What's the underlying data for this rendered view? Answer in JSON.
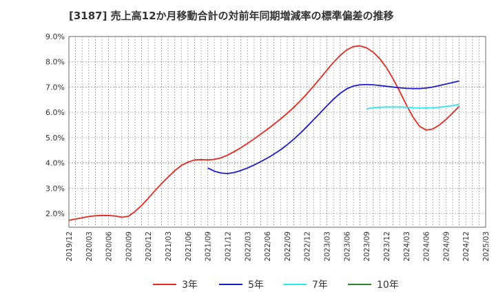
{
  "chart_data": {
    "type": "line",
    "title": "[3187]  売上高12か月移動合計の対前年同期増減率の標準偏差の推移",
    "xlabel": "",
    "ylabel": "",
    "ylim": [
      1.5,
      9.0
    ],
    "yticks": [
      "2.0%",
      "3.0%",
      "4.0%",
      "5.0%",
      "6.0%",
      "7.0%",
      "8.0%",
      "9.0%"
    ],
    "ytick_values": [
      2.0,
      3.0,
      4.0,
      5.0,
      6.0,
      7.0,
      8.0,
      9.0
    ],
    "x_start": "2019/12",
    "x_end": "2025/03",
    "xticks": [
      "2019/12",
      "2020/03",
      "2020/06",
      "2020/09",
      "2020/12",
      "2021/03",
      "2021/06",
      "2021/09",
      "2021/12",
      "2022/03",
      "2022/06",
      "2022/09",
      "2022/12",
      "2023/03",
      "2023/06",
      "2023/09",
      "2023/12",
      "2024/03",
      "2024/06",
      "2024/09",
      "2024/12",
      "2025/03"
    ],
    "grid": true,
    "legend_position": "bottom",
    "series": [
      {
        "name": "3年",
        "color": "#e8281e",
        "points": [
          [
            "2019/12",
            1.73
          ],
          [
            "2020/01",
            1.78
          ],
          [
            "2020/02",
            1.83
          ],
          [
            "2020/03",
            1.88
          ],
          [
            "2020/04",
            1.91
          ],
          [
            "2020/05",
            1.92
          ],
          [
            "2020/06",
            1.92
          ],
          [
            "2020/07",
            1.9
          ],
          [
            "2020/08",
            1.85
          ],
          [
            "2020/09",
            1.89
          ],
          [
            "2020/10",
            2.08
          ],
          [
            "2020/11",
            2.32
          ],
          [
            "2020/12",
            2.6
          ],
          [
            "2020/12",
            2.6
          ],
          [
            "2021/01",
            2.9
          ],
          [
            "2021/02",
            3.18
          ],
          [
            "2021/03",
            3.44
          ],
          [
            "2021/04",
            3.69
          ],
          [
            "2021/05",
            3.9
          ],
          [
            "2021/06",
            4.03
          ],
          [
            "2021/07",
            4.12
          ],
          [
            "2021/08",
            4.13
          ],
          [
            "2021/09",
            4.12
          ],
          [
            "2021/10",
            4.14
          ],
          [
            "2021/11",
            4.2
          ],
          [
            "2021/12",
            4.31
          ],
          [
            "2022/01",
            4.45
          ],
          [
            "2022/02",
            4.6
          ],
          [
            "2022/03",
            4.77
          ],
          [
            "2022/04",
            4.95
          ],
          [
            "2022/05",
            5.14
          ],
          [
            "2022/06",
            5.33
          ],
          [
            "2022/07",
            5.53
          ],
          [
            "2022/08",
            5.74
          ],
          [
            "2022/09",
            5.96
          ],
          [
            "2022/10",
            6.2
          ],
          [
            "2022/11",
            6.46
          ],
          [
            "2022/12",
            6.74
          ],
          [
            "2023/01",
            7.04
          ],
          [
            "2023/02",
            7.35
          ],
          [
            "2023/03",
            7.67
          ],
          [
            "2023/04",
            7.98
          ],
          [
            "2023/05",
            8.25
          ],
          [
            "2023/06",
            8.47
          ],
          [
            "2023/07",
            8.6
          ],
          [
            "2023/08",
            8.63
          ],
          [
            "2023/09",
            8.55
          ],
          [
            "2023/10",
            8.38
          ],
          [
            "2023/11",
            8.12
          ],
          [
            "2023/12",
            7.77
          ],
          [
            "2024/01",
            7.33
          ],
          [
            "2024/02",
            6.83
          ],
          [
            "2024/03",
            6.3
          ],
          [
            "2024/04",
            5.82
          ],
          [
            "2024/05",
            5.45
          ],
          [
            "2024/06",
            5.3
          ],
          [
            "2024/07",
            5.34
          ],
          [
            "2024/08",
            5.5
          ],
          [
            "2024/09",
            5.72
          ],
          [
            "2024/10",
            5.97
          ],
          [
            "2024/11",
            6.24
          ]
        ]
      },
      {
        "name": "5年",
        "color": "#1a1ad6",
        "points": [
          [
            "2021/09",
            3.8
          ],
          [
            "2021/10",
            3.67
          ],
          [
            "2021/11",
            3.6
          ],
          [
            "2021/12",
            3.58
          ],
          [
            "2022/01",
            3.62
          ],
          [
            "2022/02",
            3.7
          ],
          [
            "2022/03",
            3.8
          ],
          [
            "2022/04",
            3.92
          ],
          [
            "2022/05",
            4.05
          ],
          [
            "2022/06",
            4.19
          ],
          [
            "2022/07",
            4.35
          ],
          [
            "2022/08",
            4.52
          ],
          [
            "2022/09",
            4.72
          ],
          [
            "2022/10",
            4.94
          ],
          [
            "2022/11",
            5.18
          ],
          [
            "2022/12",
            5.44
          ],
          [
            "2023/01",
            5.71
          ],
          [
            "2023/02",
            5.98
          ],
          [
            "2023/03",
            6.26
          ],
          [
            "2023/04",
            6.52
          ],
          [
            "2023/05",
            6.75
          ],
          [
            "2023/06",
            6.93
          ],
          [
            "2023/07",
            7.04
          ],
          [
            "2023/08",
            7.09
          ],
          [
            "2023/09",
            7.1
          ],
          [
            "2023/10",
            7.09
          ],
          [
            "2023/11",
            7.06
          ],
          [
            "2023/12",
            7.03
          ],
          [
            "2024/01",
            7.0
          ],
          [
            "2024/02",
            6.97
          ],
          [
            "2024/03",
            6.95
          ],
          [
            "2024/04",
            6.94
          ],
          [
            "2024/05",
            6.94
          ],
          [
            "2024/06",
            6.96
          ],
          [
            "2024/07",
            7.0
          ],
          [
            "2024/08",
            7.06
          ],
          [
            "2024/09",
            7.12
          ],
          [
            "2024/10",
            7.18
          ],
          [
            "2024/11",
            7.24
          ]
        ]
      },
      {
        "name": "7年",
        "color": "#2ee6f0",
        "points": [
          [
            "2023/09",
            6.14
          ],
          [
            "2023/10",
            6.18
          ],
          [
            "2023/11",
            6.2
          ],
          [
            "2023/12",
            6.21
          ],
          [
            "2024/01",
            6.21
          ],
          [
            "2024/02",
            6.21
          ],
          [
            "2024/03",
            6.2
          ],
          [
            "2024/04",
            6.18
          ],
          [
            "2024/05",
            6.17
          ],
          [
            "2024/06",
            6.17
          ],
          [
            "2024/07",
            6.18
          ],
          [
            "2024/08",
            6.2
          ],
          [
            "2024/09",
            6.23
          ],
          [
            "2024/10",
            6.27
          ],
          [
            "2024/11",
            6.31
          ]
        ]
      },
      {
        "name": "10年",
        "color": "#2a8a2a",
        "points": []
      }
    ]
  }
}
